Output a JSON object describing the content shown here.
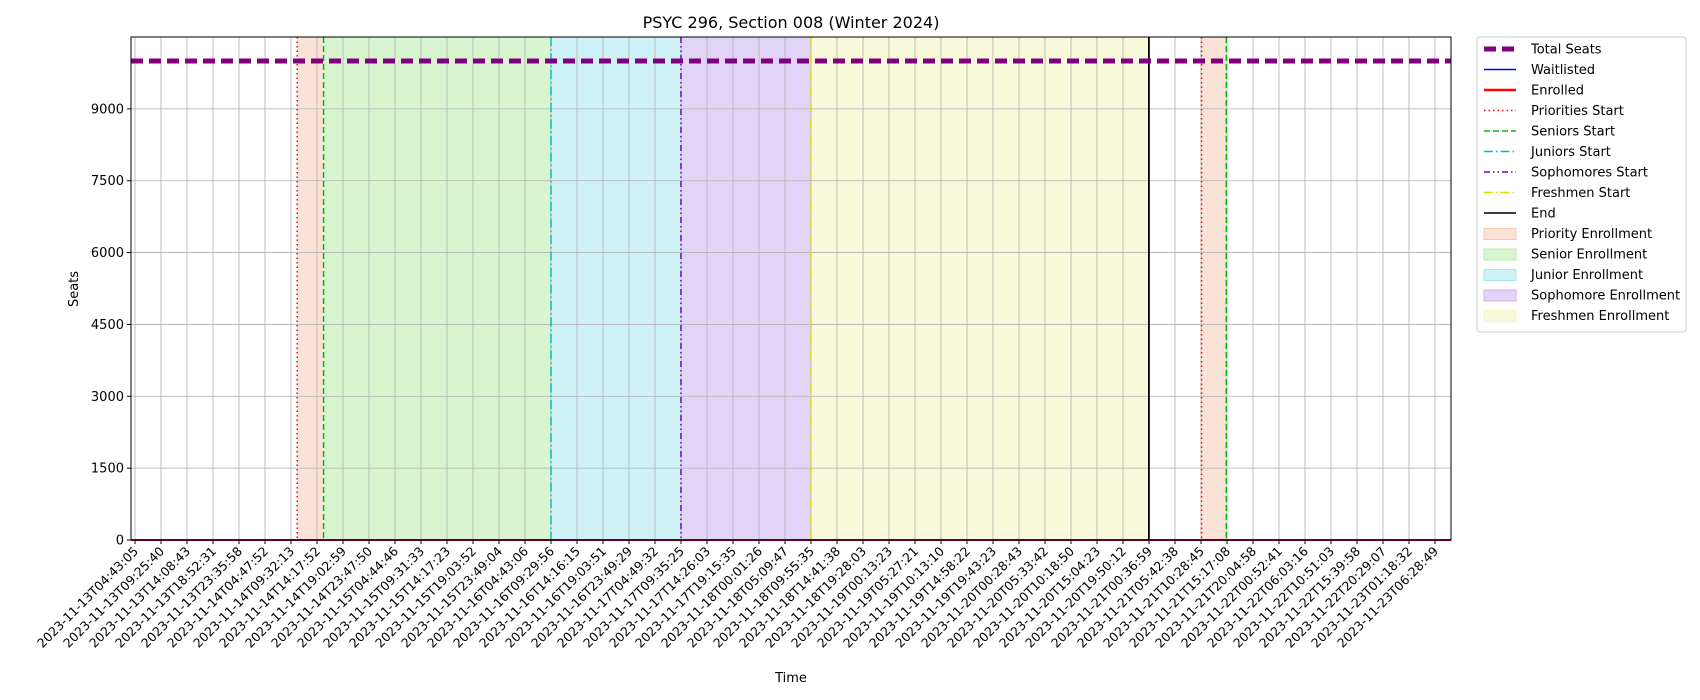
{
  "chart_data": {
    "type": "line",
    "title": "PSYC 296, Section 008 (Winter 2024)",
    "xlabel": "Time",
    "ylabel": "Seats",
    "ylim": [
      0,
      10500
    ],
    "yticks": [
      0,
      1500,
      3000,
      4500,
      6000,
      7500,
      9000
    ],
    "grid": true,
    "legend_position": "outside right, top",
    "xtick_labels": [
      "2023-11-13T04:43:05",
      "2023-11-13T09:25:40",
      "2023-11-13T14:08:43",
      "2023-11-13T18:52:31",
      "2023-11-13T23:35:58",
      "2023-11-14T04:47:52",
      "2023-11-14T09:32:13",
      "2023-11-14T14:17:52",
      "2023-11-14T19:02:59",
      "2023-11-14T23:47:50",
      "2023-11-15T04:44:46",
      "2023-11-15T09:31:33",
      "2023-11-15T14:17:23",
      "2023-11-15T19:03:52",
      "2023-11-15T23:49:04",
      "2023-11-16T04:43:06",
      "2023-11-16T09:29:56",
      "2023-11-16T14:16:15",
      "2023-11-16T19:03:51",
      "2023-11-16T23:49:29",
      "2023-11-17T04:49:32",
      "2023-11-17T09:35:25",
      "2023-11-17T14:26:03",
      "2023-11-17T19:15:35",
      "2023-11-18T00:01:26",
      "2023-11-18T05:09:47",
      "2023-11-18T09:55:35",
      "2023-11-18T14:41:38",
      "2023-11-18T19:28:03",
      "2023-11-19T00:13:23",
      "2023-11-19T05:27:21",
      "2023-11-19T10:13:10",
      "2023-11-19T14:58:22",
      "2023-11-19T19:43:23",
      "2023-11-20T00:28:43",
      "2023-11-20T05:33:42",
      "2023-11-20T10:18:50",
      "2023-11-20T15:04:23",
      "2023-11-20T19:50:12",
      "2023-11-21T00:36:59",
      "2023-11-21T05:42:38",
      "2023-11-21T10:28:45",
      "2023-11-21T15:17:08",
      "2023-11-21T20:04:58",
      "2023-11-22T00:52:41",
      "2023-11-22T06:03:16",
      "2023-11-22T10:51:03",
      "2023-11-22T15:39:58",
      "2023-11-22T20:29:07",
      "2023-11-23T01:18:32",
      "2023-11-23T06:28:49"
    ],
    "series": [
      {
        "name": "Total Seats",
        "color": "#800080",
        "style": "dashed-thick",
        "values_constant": 10000
      },
      {
        "name": "Waitlisted",
        "color": "#0000ff",
        "style": "solid",
        "values_constant": 0
      },
      {
        "name": "Enrolled",
        "color": "#ff0000",
        "style": "solid-thick",
        "values_constant": 0
      }
    ],
    "markers": [
      {
        "name": "Priorities Start",
        "color": "#ff0000",
        "style": "dotted",
        "x": "2023-11-14T10:40"
      },
      {
        "name": "Seniors Start",
        "color": "#00bb00",
        "style": "dashed",
        "x": "2023-11-14T15:30"
      },
      {
        "name": "Juniors Start",
        "color": "#00bfbf",
        "style": "dashdot",
        "x": "2023-11-16T09:30"
      },
      {
        "name": "Sophomores Start",
        "color": "#6a00d5",
        "style": "dashdotdot",
        "x": "2023-11-17T09:35"
      },
      {
        "name": "Freshmen Start",
        "color": "#dddd00",
        "style": "dashdot",
        "x": "2023-11-18T09:55"
      },
      {
        "name": "End",
        "color": "#000000",
        "style": "solid",
        "x": "2023-11-21T00:36"
      },
      {
        "name": "",
        "color": "#ff0000",
        "style": "dotted",
        "x": "2023-11-21T10:35"
      },
      {
        "name": "",
        "color": "#00bb00",
        "style": "dashed",
        "x": "2023-11-21T15:10"
      }
    ],
    "spans": [
      {
        "name": "Priority Enrollment",
        "color": "#f6cbb6",
        "x0": "2023-11-14T10:40",
        "x1": "2023-11-14T15:30"
      },
      {
        "name": "Senior Enrollment",
        "color": "#b8ecaa",
        "x0": "2023-11-14T15:30",
        "x1": "2023-11-16T09:30"
      },
      {
        "name": "Junior Enrollment",
        "color": "#a5e8ec",
        "x0": "2023-11-16T09:30",
        "x1": "2023-11-17T09:35"
      },
      {
        "name": "Sophomore Enrollment",
        "color": "#c8b0ee",
        "x0": "2023-11-17T09:35",
        "x1": "2023-11-18T09:55"
      },
      {
        "name": "Freshmen Enrollment",
        "color": "#f3f3bd",
        "x0": "2023-11-18T09:55",
        "x1": "2023-11-21T00:36"
      },
      {
        "name": "",
        "color": "#f6cbb6",
        "x0": "2023-11-21T10:35",
        "x1": "2023-11-21T15:10"
      }
    ],
    "legend": [
      {
        "label": "Total Seats",
        "kind": "line",
        "color": "#800080",
        "style": "dashed-thick"
      },
      {
        "label": "Waitlisted",
        "kind": "line",
        "color": "#0000ff",
        "style": "solid"
      },
      {
        "label": "Enrolled",
        "kind": "line",
        "color": "#ff0000",
        "style": "solid-thick"
      },
      {
        "label": "Priorities Start",
        "kind": "line",
        "color": "#ff0000",
        "style": "dotted"
      },
      {
        "label": "Seniors Start",
        "kind": "line",
        "color": "#00bb00",
        "style": "dashed"
      },
      {
        "label": "Juniors Start",
        "kind": "line",
        "color": "#00bfbf",
        "style": "dashdot"
      },
      {
        "label": "Sophomores Start",
        "kind": "line",
        "color": "#6a00d5",
        "style": "dashdotdot"
      },
      {
        "label": "Freshmen Start",
        "kind": "line",
        "color": "#dddd00",
        "style": "dashdot"
      },
      {
        "label": "End",
        "kind": "line",
        "color": "#000000",
        "style": "solid"
      },
      {
        "label": "Priority Enrollment",
        "kind": "patch",
        "color": "#f6cbb6"
      },
      {
        "label": "Senior Enrollment",
        "kind": "patch",
        "color": "#b8ecaa"
      },
      {
        "label": "Junior Enrollment",
        "kind": "patch",
        "color": "#a5e8ec"
      },
      {
        "label": "Sophomore Enrollment",
        "kind": "patch",
        "color": "#c8b0ee"
      },
      {
        "label": "Freshmen Enrollment",
        "kind": "patch",
        "color": "#f3f3bd"
      }
    ]
  }
}
